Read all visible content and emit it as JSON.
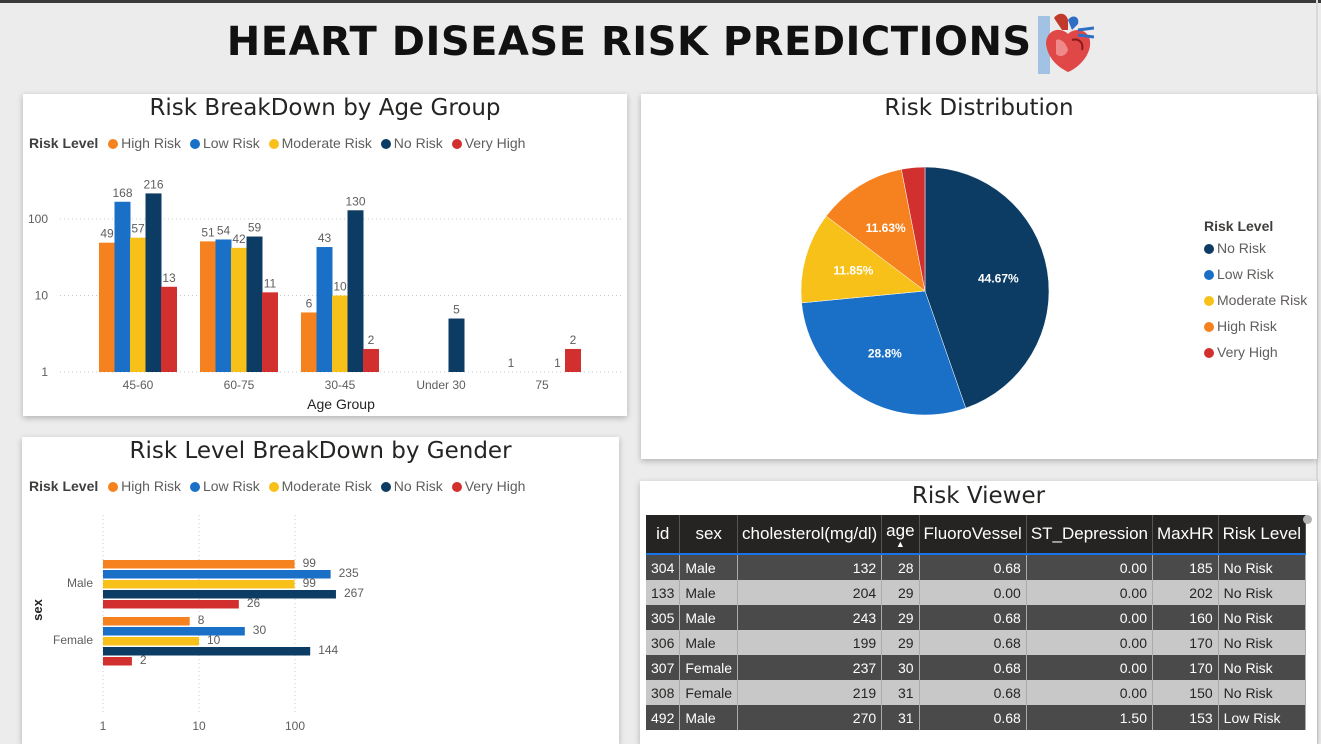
{
  "page_title": "HEART DISEASE RISK PREDICTIONS",
  "colors": {
    "high_risk": "#F5821F",
    "low_risk": "#1A6FC6",
    "moderate_risk": "#F8C11A",
    "no_risk": "#0C3B63",
    "very_high": "#D2302E"
  },
  "legend": {
    "title": "Risk Level",
    "items": [
      "High Risk",
      "Low Risk",
      "Moderate Risk",
      "No Risk",
      "Very High"
    ]
  },
  "age_chart": {
    "title": "Risk BreakDown by Age Group",
    "xlabel": "Age Group",
    "y_ticks": [
      "1",
      "10",
      "100"
    ]
  },
  "gender_chart": {
    "title": "Risk Level BreakDown by Gender",
    "ylabel": "sex",
    "x_ticks": [
      "1",
      "10",
      "100"
    ]
  },
  "pie_chart": {
    "title": "Risk Distribution",
    "legend_title": "Risk Level",
    "legend_items": [
      "No Risk",
      "Low Risk",
      "Moderate Risk",
      "High Risk",
      "Very High"
    ],
    "labels": [
      "44.67%",
      "28.8%",
      "11.85%",
      "11.63%"
    ]
  },
  "chart_data": [
    {
      "type": "bar",
      "title": "Risk BreakDown by Age Group",
      "xlabel": "Age Group",
      "ylabel": "",
      "scale": "log",
      "ylim": [
        1,
        300
      ],
      "categories": [
        "45-60",
        "60-75",
        "30-45",
        "Under 30",
        "75"
      ],
      "series": [
        {
          "name": "High Risk",
          "values": [
            49,
            51,
            6,
            null,
            1
          ]
        },
        {
          "name": "Low Risk",
          "values": [
            168,
            54,
            43,
            null,
            null
          ]
        },
        {
          "name": "Moderate Risk",
          "values": [
            57,
            42,
            10,
            null,
            null
          ]
        },
        {
          "name": "No Risk",
          "values": [
            216,
            59,
            130,
            5,
            1
          ]
        },
        {
          "name": "Very High",
          "values": [
            13,
            11,
            2,
            null,
            2
          ]
        }
      ],
      "legend_position": "top-left",
      "grid": true
    },
    {
      "type": "bar",
      "orientation": "horizontal",
      "title": "Risk Level BreakDown by Gender",
      "ylabel": "sex",
      "scale": "log",
      "xlim": [
        1,
        300
      ],
      "categories": [
        "Male",
        "Female"
      ],
      "series": [
        {
          "name": "High Risk",
          "values": [
            99,
            8
          ]
        },
        {
          "name": "Low Risk",
          "values": [
            235,
            30
          ]
        },
        {
          "name": "Moderate Risk",
          "values": [
            99,
            10
          ]
        },
        {
          "name": "No Risk",
          "values": [
            267,
            144
          ]
        },
        {
          "name": "Very High",
          "values": [
            26,
            2
          ]
        }
      ],
      "legend_position": "top-left",
      "grid": true
    },
    {
      "type": "pie",
      "title": "Risk Distribution",
      "categories": [
        "No Risk",
        "Low Risk",
        "Moderate Risk",
        "High Risk",
        "Very High"
      ],
      "values": [
        44.67,
        28.8,
        11.85,
        11.63,
        3.05
      ],
      "legend_position": "right"
    }
  ],
  "risk_viewer": {
    "title": "Risk Viewer",
    "columns": [
      "id",
      "sex",
      "cholesterol(mg/dl)",
      "age",
      "FluoroVessel",
      "ST_Depression",
      "MaxHR",
      "Risk Level"
    ],
    "rows": [
      [
        "304",
        "Male",
        "132",
        "28",
        "0.68",
        "0.00",
        "185",
        "No Risk"
      ],
      [
        "133",
        "Male",
        "204",
        "29",
        "0.00",
        "0.00",
        "202",
        "No Risk"
      ],
      [
        "305",
        "Male",
        "243",
        "29",
        "0.68",
        "0.00",
        "160",
        "No Risk"
      ],
      [
        "306",
        "Male",
        "199",
        "29",
        "0.68",
        "0.00",
        "170",
        "No Risk"
      ],
      [
        "307",
        "Female",
        "237",
        "30",
        "0.68",
        "0.00",
        "170",
        "No Risk"
      ],
      [
        "308",
        "Female",
        "219",
        "31",
        "0.68",
        "0.00",
        "150",
        "No Risk"
      ],
      [
        "492",
        "Male",
        "270",
        "31",
        "0.68",
        "1.50",
        "153",
        "Low Risk"
      ]
    ]
  }
}
